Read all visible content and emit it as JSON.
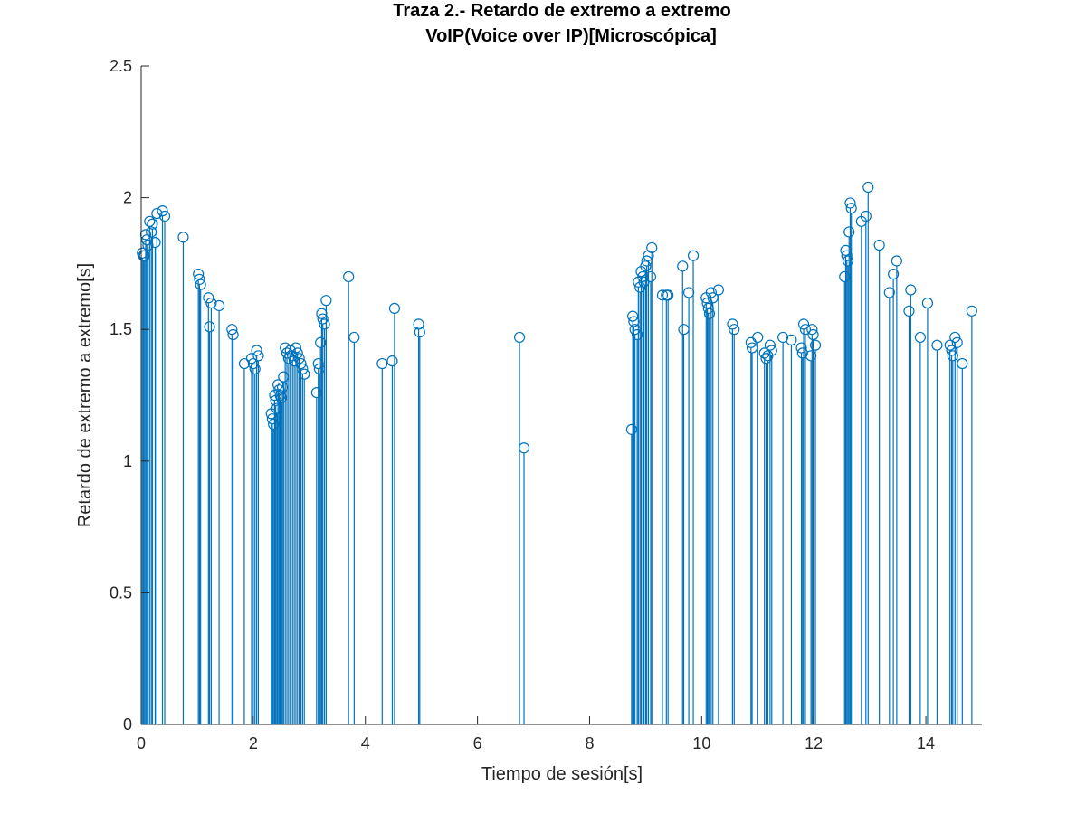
{
  "chart_data": {
    "type": "stem",
    "title": "Traza 2.- Retardo de extremo a extremo",
    "subtitle": "VoIP(Voice over IP)[Microscópica]",
    "xlabel": "Tiempo de sesión[s]",
    "ylabel": "Retardo de extremo a extremo[s]",
    "xlim": [
      0,
      15
    ],
    "ylim": [
      0,
      2.5
    ],
    "xticks": [
      0,
      2,
      4,
      6,
      8,
      10,
      12,
      14
    ],
    "yticks": [
      0,
      0.5,
      1,
      1.5,
      2,
      2.5
    ],
    "xtick_labels": [
      "0",
      "2",
      "4",
      "6",
      "8",
      "10",
      "12",
      "14"
    ],
    "ytick_labels": [
      "0",
      "0.5",
      "1",
      "1.5",
      "2",
      "2.5"
    ],
    "grid": false,
    "color": "#0072bd",
    "marker": "circle",
    "series": [
      {
        "x": [
          0.02,
          0.04,
          0.06,
          0.08,
          0.1,
          0.12,
          0.15,
          0.18,
          0.2,
          0.25,
          0.28,
          0.38,
          0.42,
          0.75,
          1.02,
          1.04,
          1.06,
          1.2,
          1.22,
          1.25,
          1.39,
          1.62,
          1.64,
          1.84,
          1.97,
          2.0,
          2.03,
          2.06,
          2.09,
          2.32,
          2.34,
          2.36,
          2.38,
          2.4,
          2.42,
          2.44,
          2.46,
          2.48,
          2.5,
          2.52,
          2.54,
          2.57,
          2.6,
          2.63,
          2.66,
          2.7,
          2.73,
          2.76,
          2.79,
          2.82,
          2.85,
          2.88,
          2.91,
          3.13,
          3.16,
          3.18,
          3.2,
          3.22,
          3.24,
          3.27,
          3.3,
          3.7,
          3.8,
          4.3,
          4.48,
          4.52,
          4.95,
          4.97,
          6.75,
          6.83,
          8.75,
          8.77,
          8.79,
          8.81,
          8.85,
          8.87,
          8.9,
          8.92,
          8.95,
          8.97,
          9.0,
          9.02,
          9.05,
          9.09,
          9.11,
          9.3,
          9.37,
          9.4,
          9.66,
          9.68,
          9.77,
          9.85,
          10.08,
          10.1,
          10.12,
          10.14,
          10.17,
          10.2,
          10.3,
          10.55,
          10.58,
          10.88,
          10.9,
          11.0,
          11.12,
          11.15,
          11.18,
          11.22,
          11.25,
          11.45,
          11.6,
          11.78,
          11.8,
          11.82,
          11.85,
          11.95,
          11.97,
          11.99,
          12.03,
          12.55,
          12.57,
          12.59,
          12.61,
          12.63,
          12.65,
          12.67,
          12.85,
          12.93,
          12.97,
          13.17,
          13.35,
          13.42,
          13.48,
          13.7,
          13.73,
          13.9,
          14.03,
          14.2,
          14.43,
          14.46,
          14.48,
          14.52,
          14.56,
          14.65,
          14.82
        ],
        "y": [
          1.79,
          1.78,
          1.78,
          1.86,
          1.84,
          1.82,
          1.91,
          1.87,
          1.9,
          1.83,
          1.94,
          1.95,
          1.93,
          1.85,
          1.71,
          1.69,
          1.67,
          1.62,
          1.51,
          1.6,
          1.59,
          1.5,
          1.48,
          1.37,
          1.39,
          1.37,
          1.35,
          1.42,
          1.4,
          1.18,
          1.16,
          1.14,
          1.25,
          1.23,
          1.2,
          1.29,
          1.27,
          1.25,
          1.24,
          1.28,
          1.32,
          1.43,
          1.41,
          1.39,
          1.42,
          1.4,
          1.38,
          1.43,
          1.41,
          1.39,
          1.37,
          1.35,
          1.33,
          1.26,
          1.37,
          1.35,
          1.45,
          1.56,
          1.54,
          1.52,
          1.61,
          1.7,
          1.47,
          1.37,
          1.38,
          1.58,
          1.52,
          1.49,
          1.47,
          1.05,
          1.12,
          1.55,
          1.53,
          1.5,
          1.48,
          1.68,
          1.66,
          1.72,
          1.7,
          1.68,
          1.74,
          1.76,
          1.78,
          1.7,
          1.81,
          1.63,
          1.63,
          1.63,
          1.74,
          1.5,
          1.64,
          1.78,
          1.62,
          1.6,
          1.58,
          1.56,
          1.64,
          1.62,
          1.65,
          1.52,
          1.5,
          1.45,
          1.43,
          1.47,
          1.41,
          1.39,
          1.4,
          1.44,
          1.42,
          1.47,
          1.46,
          1.43,
          1.41,
          1.52,
          1.5,
          1.4,
          1.5,
          1.48,
          1.44,
          1.7,
          1.8,
          1.78,
          1.76,
          1.87,
          1.98,
          1.96,
          1.91,
          1.93,
          2.04,
          1.82,
          1.64,
          1.71,
          1.76,
          1.57,
          1.65,
          1.47,
          1.6,
          1.44,
          1.44,
          1.42,
          1.4,
          1.47,
          1.45,
          1.37,
          1.57
        ]
      }
    ]
  }
}
